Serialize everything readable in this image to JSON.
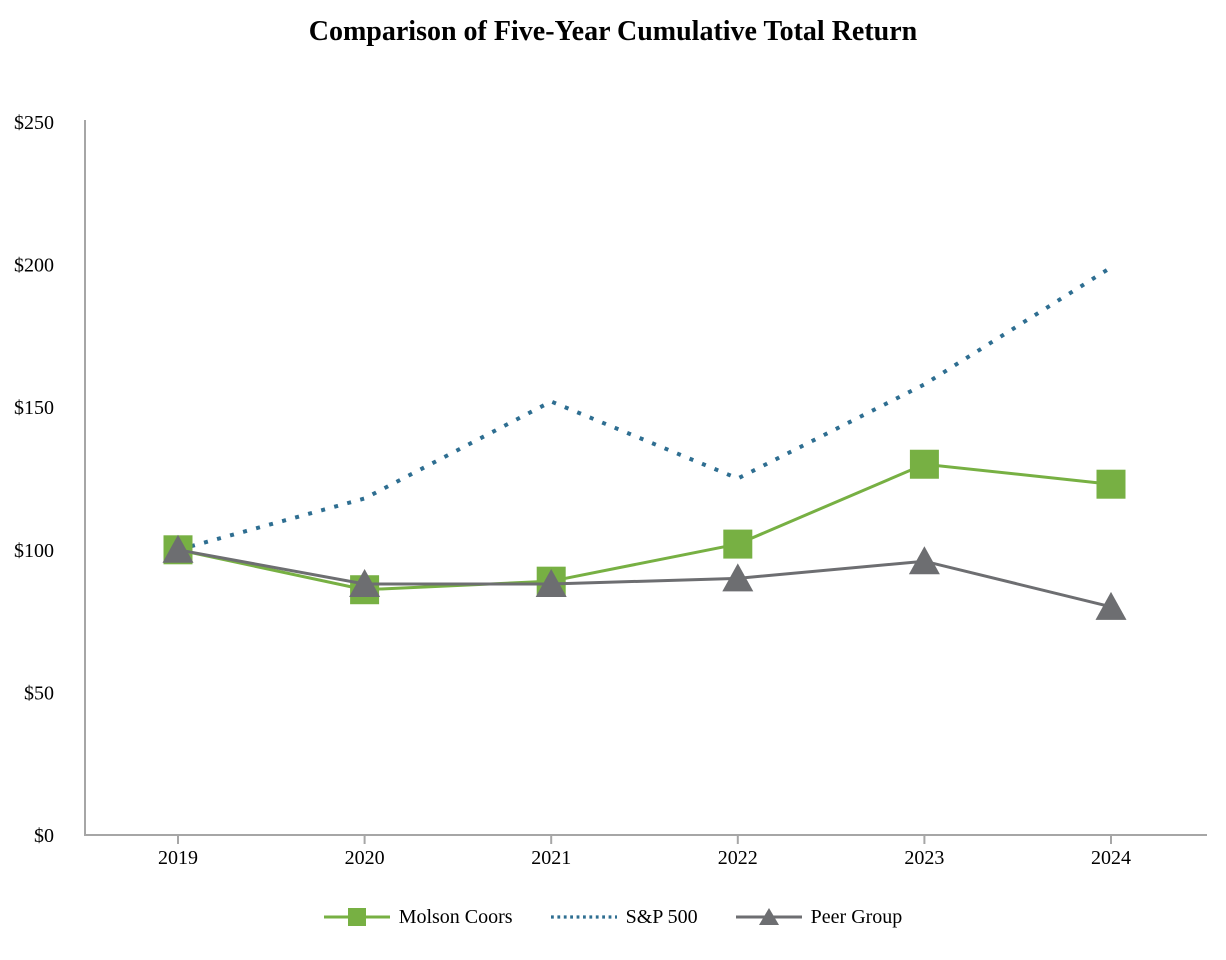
{
  "title": "Comparison of Five-Year Cumulative Total Return",
  "chart_data": {
    "type": "line",
    "title": "Comparison of Five-Year Cumulative Total Return",
    "xlabel": "",
    "ylabel": "",
    "categories": [
      "2019",
      "2020",
      "2021",
      "2022",
      "2023",
      "2024"
    ],
    "series": [
      {
        "name": "Molson Coors",
        "color": "#77b043",
        "marker": "square",
        "line_style": "solid",
        "values": [
          100,
          86,
          89,
          102,
          130,
          123
        ]
      },
      {
        "name": "S&P 500",
        "color": "#2e6e91",
        "marker": "none",
        "line_style": "dotted",
        "values": [
          100,
          118,
          152,
          125,
          158,
          199
        ]
      },
      {
        "name": "Peer Group",
        "color": "#6d6e71",
        "marker": "triangle",
        "line_style": "solid",
        "values": [
          100,
          88,
          88,
          90,
          96,
          80
        ]
      }
    ],
    "y_ticks": [
      "$0",
      "$50",
      "$100",
      "$150",
      "$200",
      "$250"
    ],
    "y_tick_values": [
      0,
      50,
      100,
      150,
      200,
      250
    ],
    "ylim": [
      0,
      250
    ],
    "axis_color": "#a6a6a6",
    "grid": false,
    "legend_position": "bottom"
  }
}
